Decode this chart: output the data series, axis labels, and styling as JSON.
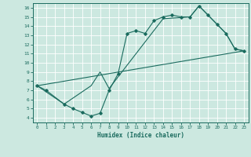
{
  "xlabel": "Humidex (Indice chaleur)",
  "xlim": [
    -0.5,
    23.5
  ],
  "ylim": [
    3.5,
    16.5
  ],
  "xticks": [
    0,
    1,
    2,
    3,
    4,
    5,
    6,
    7,
    8,
    9,
    10,
    11,
    12,
    13,
    14,
    15,
    16,
    17,
    18,
    19,
    20,
    21,
    22,
    23
  ],
  "yticks": [
    4,
    5,
    6,
    7,
    8,
    9,
    10,
    11,
    12,
    13,
    14,
    15,
    16
  ],
  "bg_color": "#cce8e0",
  "line_color": "#1a6b5e",
  "grid_color": "#b8d8d0",
  "line1_x": [
    0,
    1,
    3,
    4,
    5,
    6,
    7,
    8,
    9,
    10,
    11,
    12,
    13,
    14,
    15,
    16,
    17,
    18,
    19,
    20,
    21,
    22,
    23
  ],
  "line1_y": [
    7.5,
    7.0,
    5.5,
    5.0,
    4.6,
    4.2,
    4.5,
    7.0,
    8.8,
    13.2,
    13.5,
    13.2,
    14.6,
    15.0,
    15.2,
    15.0,
    15.0,
    16.2,
    15.2,
    14.2,
    13.2,
    11.5,
    11.3
  ],
  "line2_x": [
    0,
    3,
    6,
    7,
    8,
    14,
    17,
    18,
    19,
    20,
    21,
    22,
    23
  ],
  "line2_y": [
    7.5,
    5.5,
    7.5,
    9.0,
    7.2,
    14.8,
    15.0,
    16.2,
    15.2,
    14.2,
    13.2,
    11.5,
    11.3
  ],
  "line3_x": [
    0,
    23
  ],
  "line3_y": [
    7.5,
    11.3
  ],
  "figsize": [
    3.2,
    2.0
  ],
  "dpi": 100
}
